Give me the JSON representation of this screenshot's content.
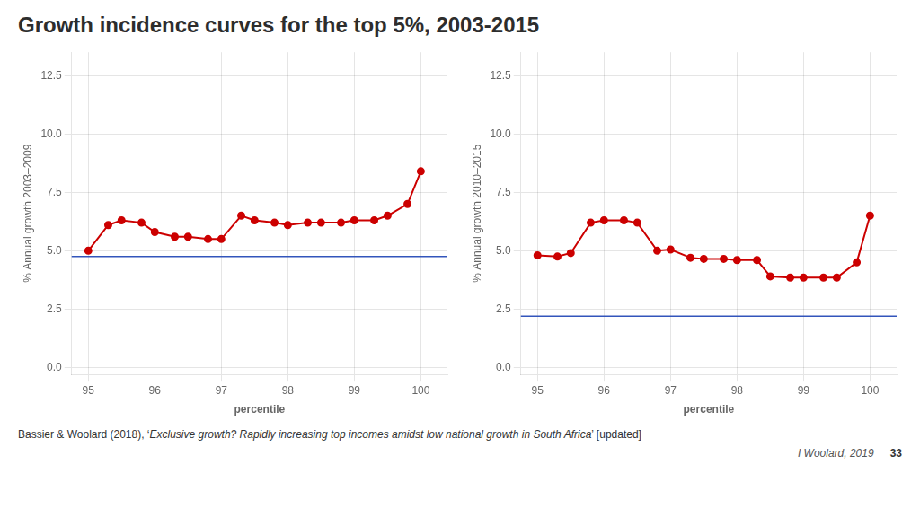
{
  "chart_data": [
    {
      "type": "line",
      "title": "Growth incidence curves for the top 5%, 2003-2015",
      "x_label": "percentile",
      "y_label": "% Annual growth 2003–2009",
      "x": [
        95.0,
        95.3,
        95.5,
        95.8,
        96.0,
        96.3,
        96.5,
        96.8,
        97.0,
        97.3,
        97.5,
        97.8,
        98.0,
        98.3,
        98.5,
        98.8,
        99.0,
        99.3,
        99.5,
        99.8,
        100.0
      ],
      "series": [
        {
          "values": [
            5.0,
            6.1,
            6.3,
            6.2,
            5.8,
            5.6,
            5.6,
            5.5,
            5.5,
            6.5,
            6.3,
            6.2,
            6.1,
            6.2,
            6.2,
            6.2,
            6.3,
            6.3,
            6.5,
            7.0,
            8.4
          ],
          "color": "#cc0000",
          "marker": "circle",
          "line_style": "solid"
        }
      ],
      "hline": {
        "value": 4.75,
        "color": "#3355bb"
      },
      "xlim": [
        94.75,
        100.4
      ],
      "xticks": [
        95,
        96,
        97,
        98,
        99,
        100
      ],
      "ylim": [
        -0.3,
        13.5
      ],
      "yticks": [
        {
          "value": 0,
          "label": "0.0"
        },
        2.5,
        {
          "value": 5,
          "label": "5.0"
        },
        7.5,
        {
          "value": 10,
          "label": "10.0"
        },
        12.5
      ],
      "grid": true,
      "footnote": [
        "Bassier & Woolard (2018), ‘",
        "Exclusive growth? Rapidly increasing top incomes amidst low national growth in South Africa",
        "’ [updated]"
      ],
      "annotations": [
        "I Woolard, 2019",
        "33"
      ]
    },
    {
      "type": "line",
      "x_label": "percentile",
      "y_label": "% Annual growth 2010–2015",
      "x": [
        95.0,
        95.3,
        95.5,
        95.8,
        96.0,
        96.3,
        96.5,
        96.8,
        97.0,
        97.3,
        97.5,
        97.8,
        98.0,
        98.3,
        98.5,
        98.8,
        99.0,
        99.3,
        99.5,
        99.8,
        100.0
      ],
      "series": [
        {
          "values": [
            4.8,
            4.75,
            4.9,
            6.2,
            6.3,
            6.3,
            6.2,
            5.0,
            5.05,
            4.7,
            4.65,
            4.65,
            4.6,
            4.6,
            3.9,
            3.85,
            3.85,
            3.85,
            3.85,
            4.5,
            6.5
          ],
          "color": "#cc0000",
          "marker": "circle",
          "line_style": "solid"
        }
      ],
      "hline": {
        "value": 2.2,
        "color": "#3355bb"
      },
      "xlim": [
        94.75,
        100.4
      ],
      "xticks": [
        95,
        96,
        97,
        98,
        99,
        100
      ],
      "ylim": [
        -0.3,
        13.5
      ],
      "yticks": [
        {
          "value": 0,
          "label": "0.0"
        },
        2.5,
        {
          "value": 5,
          "label": "5.0"
        },
        7.5,
        {
          "value": 10,
          "label": "10.0"
        },
        12.5
      ],
      "grid": true
    }
  ]
}
